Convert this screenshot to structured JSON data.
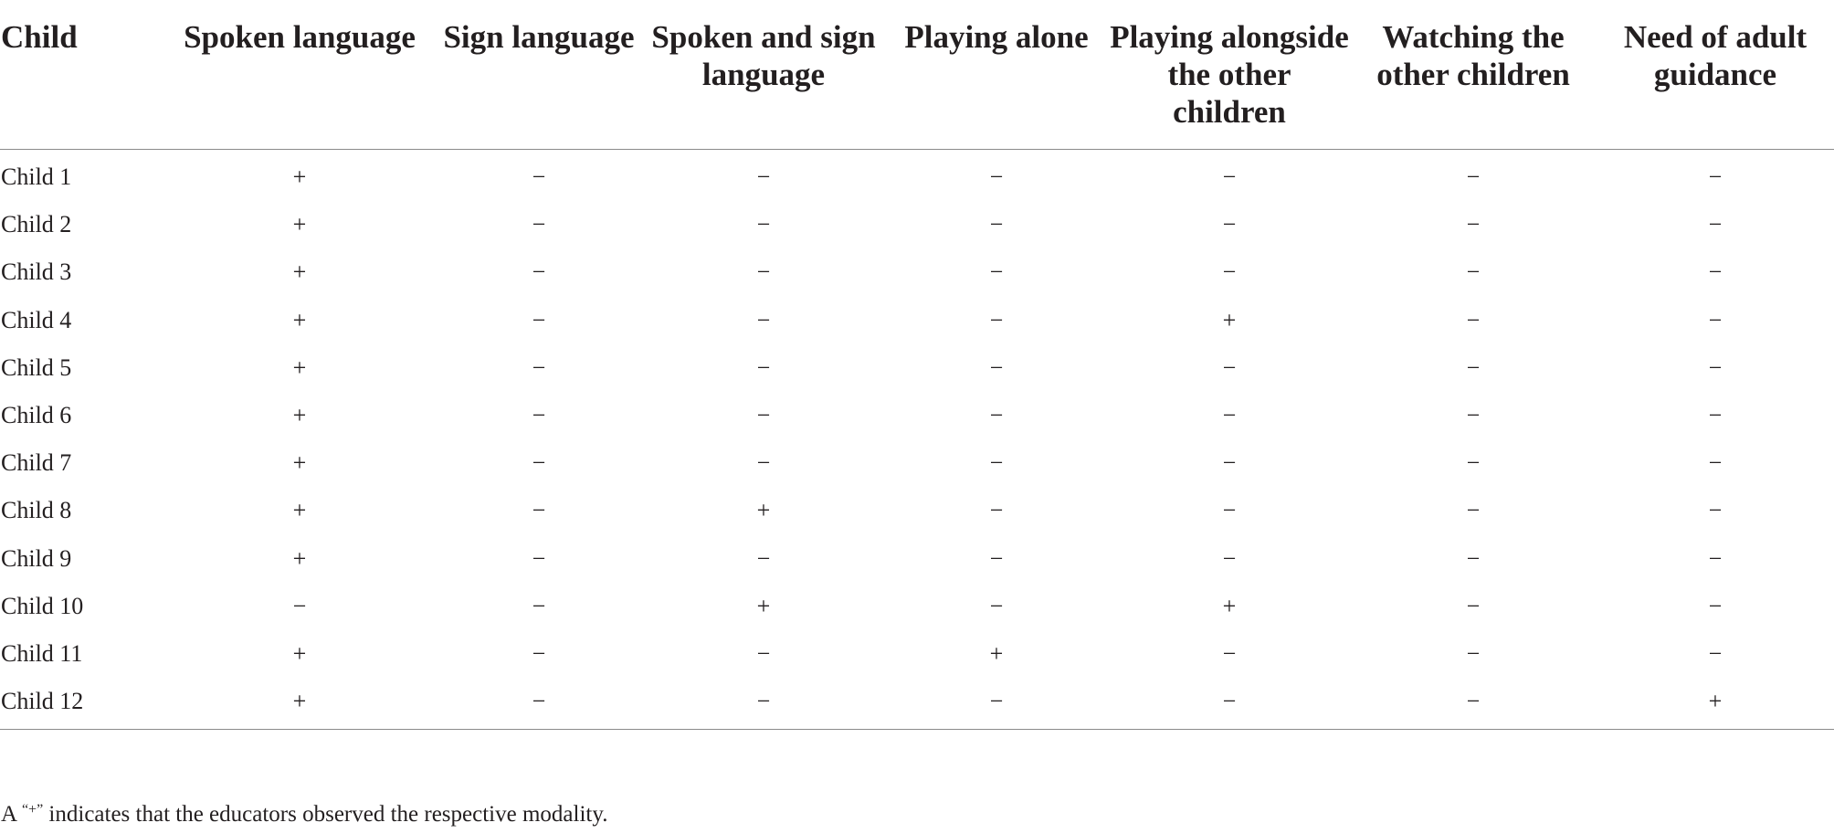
{
  "table": {
    "headers": [
      "Child",
      "Spoken language",
      "Sign language",
      "Spoken and sign language",
      "Playing alone",
      "Playing alongside the other children",
      "Watching the other children",
      "Need of adult guidance"
    ],
    "rows": [
      [
        "Child 1",
        "+",
        "−",
        "−",
        "−",
        "−",
        "−",
        "−"
      ],
      [
        "Child 2",
        "+",
        "−",
        "−",
        "−",
        "−",
        "−",
        "−"
      ],
      [
        "Child 3",
        "+",
        "−",
        "−",
        "−",
        "−",
        "−",
        "−"
      ],
      [
        "Child 4",
        "+",
        "−",
        "−",
        "−",
        "+",
        "−",
        "−"
      ],
      [
        "Child 5",
        "+",
        "−",
        "−",
        "−",
        "−",
        "−",
        "−"
      ],
      [
        "Child 6",
        "+",
        "−",
        "−",
        "−",
        "−",
        "−",
        "−"
      ],
      [
        "Child 7",
        "+",
        "−",
        "−",
        "−",
        "−",
        "−",
        "−"
      ],
      [
        "Child 8",
        "+",
        "−",
        "+",
        "−",
        "−",
        "−",
        "−"
      ],
      [
        "Child 9",
        "+",
        "−",
        "−",
        "−",
        "−",
        "−",
        "−"
      ],
      [
        "Child 10",
        "−",
        "−",
        "+",
        "−",
        "+",
        "−",
        "−"
      ],
      [
        "Child 11",
        "+",
        "−",
        "−",
        "+",
        "−",
        "−",
        "−"
      ],
      [
        "Child 12",
        "+",
        "−",
        "−",
        "−",
        "−",
        "−",
        "+"
      ]
    ]
  },
  "footnote": {
    "prefix": "A ",
    "quoted_symbol": "“+”",
    "suffix": " indicates that the educators observed the respective modality."
  }
}
